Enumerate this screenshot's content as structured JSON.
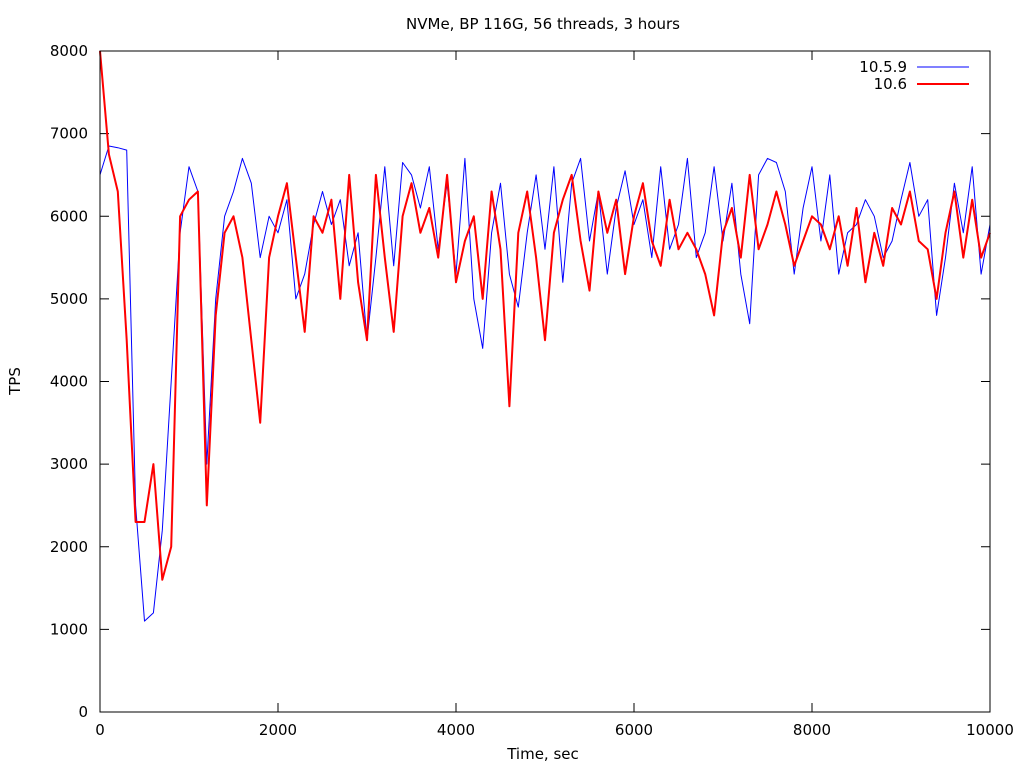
{
  "chart_data": {
    "type": "line",
    "title": "NVMe, BP 116G, 56 threads, 3 hours",
    "xlabel": "Time, sec",
    "ylabel": "TPS",
    "xlim": [
      0,
      10000
    ],
    "ylim": [
      0,
      8000
    ],
    "xticks": [
      0,
      2000,
      4000,
      6000,
      8000,
      10000
    ],
    "yticks": [
      0,
      1000,
      2000,
      3000,
      4000,
      5000,
      6000,
      7000,
      8000
    ],
    "grid": false,
    "legend_position": "top-right",
    "x_step": 100,
    "series": [
      {
        "name": "10.5.9",
        "color": "#0000ff",
        "values": [
          6500,
          6850,
          6830,
          6800,
          2500,
          1100,
          1200,
          2200,
          4000,
          5800,
          6600,
          6300,
          3000,
          5000,
          6000,
          6300,
          6700,
          6400,
          5500,
          6000,
          5800,
          6200,
          5000,
          5300,
          5900,
          6300,
          5900,
          6200,
          5400,
          5800,
          4500,
          5500,
          6600,
          5400,
          6650,
          6500,
          6100,
          6600,
          5600,
          6400,
          5300,
          6700,
          5000,
          4400,
          5800,
          6400,
          5300,
          4900,
          5800,
          6500,
          5600,
          6600,
          5200,
          6400,
          6700,
          5700,
          6300,
          5300,
          6100,
          6550,
          5900,
          6200,
          5500,
          6600,
          5600,
          5900,
          6700,
          5500,
          5800,
          6600,
          5700,
          6400,
          5300,
          4700,
          6500,
          6700,
          6650,
          6300,
          5300,
          6100,
          6600,
          5700,
          6500,
          5300,
          5800,
          5900,
          6200,
          6000,
          5500,
          5700,
          6200,
          6650,
          6000,
          6200,
          4800,
          5500,
          6400,
          5800,
          6600,
          5300,
          5900
        ]
      },
      {
        "name": "10.6",
        "color": "#ff0000",
        "values": [
          8000,
          6750,
          6300,
          4500,
          2300,
          2300,
          3000,
          1600,
          2000,
          6000,
          6200,
          6300,
          2500,
          4800,
          5800,
          6000,
          5500,
          4500,
          3500,
          5500,
          6000,
          6400,
          5500,
          4600,
          6000,
          5800,
          6200,
          5000,
          6500,
          5200,
          4500,
          6500,
          5500,
          4600,
          6000,
          6400,
          5800,
          6100,
          5500,
          6500,
          5200,
          5700,
          6000,
          5000,
          6300,
          5600,
          3700,
          5800,
          6300,
          5500,
          4500,
          5800,
          6200,
          6500,
          5700,
          5100,
          6300,
          5800,
          6200,
          5300,
          6000,
          6400,
          5700,
          5400,
          6200,
          5600,
          5800,
          5600,
          5300,
          4800,
          5800,
          6100,
          5500,
          6500,
          5600,
          5900,
          6300,
          5900,
          5400,
          5700,
          6000,
          5900,
          5600,
          6000,
          5400,
          6100,
          5200,
          5800,
          5400,
          6100,
          5900,
          6300,
          5700,
          5600,
          5000,
          5800,
          6300,
          5500,
          6200,
          5500,
          5800
        ]
      }
    ]
  }
}
